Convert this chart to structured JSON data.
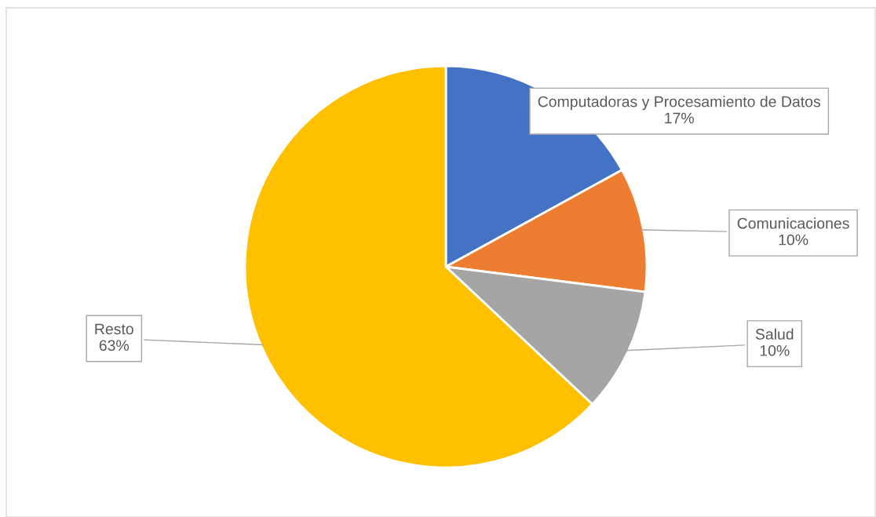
{
  "chart_data": {
    "type": "pie",
    "categories": [
      "Computadoras y Procesamiento de Datos",
      "Comunicaciones",
      "Salud",
      "Resto"
    ],
    "values": [
      17,
      10,
      10,
      63
    ],
    "value_labels": [
      "17%",
      "10%",
      "10%",
      "63%"
    ],
    "colors": [
      "#4472c4",
      "#ed7d31",
      "#a5a5a5",
      "#ffc000"
    ]
  }
}
